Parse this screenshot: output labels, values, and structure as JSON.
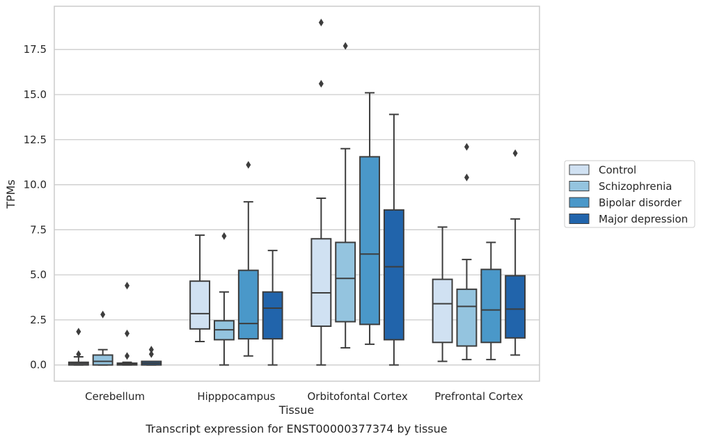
{
  "chart_data": {
    "type": "box",
    "title": "Transcript expression for ENST00000377374 by tissue",
    "xlabel": "Tissue",
    "ylabel": "TPMs",
    "ylim": [
      -0.9,
      19.9
    ],
    "yticks": [
      0.0,
      2.5,
      5.0,
      7.5,
      10.0,
      12.5,
      15.0,
      17.5
    ],
    "ytick_labels": [
      "0.0",
      "2.5",
      "5.0",
      "7.5",
      "10.0",
      "12.5",
      "15.0",
      "17.5"
    ],
    "grid": "horizontal",
    "legend_position": "right",
    "categories": [
      "Cerebellum",
      "Hipppocampus",
      "Orbitofontal Cortex",
      "Prefrontal Cortex"
    ],
    "series": [
      {
        "name": "Control",
        "color": "#d0e1f2",
        "boxes": [
          {
            "whislo": 0.0,
            "q1": 0.0,
            "med": 0.08,
            "q3": 0.15,
            "whishi": 0.45,
            "fliers": [
              0.6,
              1.85
            ]
          },
          {
            "whislo": 1.3,
            "q1": 2.0,
            "med": 2.85,
            "q3": 4.65,
            "whishi": 7.2,
            "fliers": []
          },
          {
            "whislo": 0.0,
            "q1": 2.15,
            "med": 4.0,
            "q3": 7.0,
            "whishi": 9.25,
            "fliers": [
              15.6,
              19.0
            ]
          },
          {
            "whislo": 0.2,
            "q1": 1.25,
            "med": 3.4,
            "q3": 4.75,
            "whishi": 7.65,
            "fliers": []
          }
        ]
      },
      {
        "name": "Schizophrenia",
        "color": "#94c4df",
        "boxes": [
          {
            "whislo": 0.0,
            "q1": 0.0,
            "med": 0.2,
            "q3": 0.55,
            "whishi": 0.85,
            "fliers": [
              2.8
            ]
          },
          {
            "whislo": 0.0,
            "q1": 1.4,
            "med": 1.95,
            "q3": 2.45,
            "whishi": 4.05,
            "fliers": [
              7.15
            ]
          },
          {
            "whislo": 0.95,
            "q1": 2.4,
            "med": 4.8,
            "q3": 6.8,
            "whishi": 12.0,
            "fliers": [
              17.7
            ]
          },
          {
            "whislo": 0.3,
            "q1": 1.05,
            "med": 3.25,
            "q3": 4.2,
            "whishi": 5.85,
            "fliers": [
              10.4,
              12.1
            ]
          }
        ]
      },
      {
        "name": "Bipolar disorder",
        "color": "#4a98c9",
        "boxes": [
          {
            "whislo": 0.0,
            "q1": 0.0,
            "med": 0.05,
            "q3": 0.1,
            "whishi": 0.15,
            "fliers": [
              0.5,
              1.75,
              4.4
            ]
          },
          {
            "whislo": 0.5,
            "q1": 1.45,
            "med": 2.3,
            "q3": 5.25,
            "whishi": 9.05,
            "fliers": [
              11.1
            ]
          },
          {
            "whislo": 1.15,
            "q1": 2.25,
            "med": 6.15,
            "q3": 11.55,
            "whishi": 15.1,
            "fliers": []
          },
          {
            "whislo": 0.3,
            "q1": 1.25,
            "med": 3.05,
            "q3": 5.3,
            "whishi": 6.8,
            "fliers": []
          }
        ]
      },
      {
        "name": "Major depression",
        "color": "#2164ab",
        "boxes": [
          {
            "whislo": 0.0,
            "q1": 0.0,
            "med": 0.1,
            "q3": 0.2,
            "whishi": 0.2,
            "fliers": [
              0.6,
              0.85
            ]
          },
          {
            "whislo": 0.0,
            "q1": 1.45,
            "med": 3.15,
            "q3": 4.05,
            "whishi": 6.35,
            "fliers": []
          },
          {
            "whislo": 0.0,
            "q1": 1.4,
            "med": 5.45,
            "q3": 8.6,
            "whishi": 13.9,
            "fliers": []
          },
          {
            "whislo": 0.55,
            "q1": 1.5,
            "med": 3.1,
            "q3": 4.95,
            "whishi": 8.1,
            "fliers": [
              11.75
            ]
          }
        ]
      }
    ]
  },
  "colors": {
    "frame": "#cccccc",
    "grid": "#cccccc",
    "box_edge": "#3d3d3d",
    "text": "#262626"
  }
}
